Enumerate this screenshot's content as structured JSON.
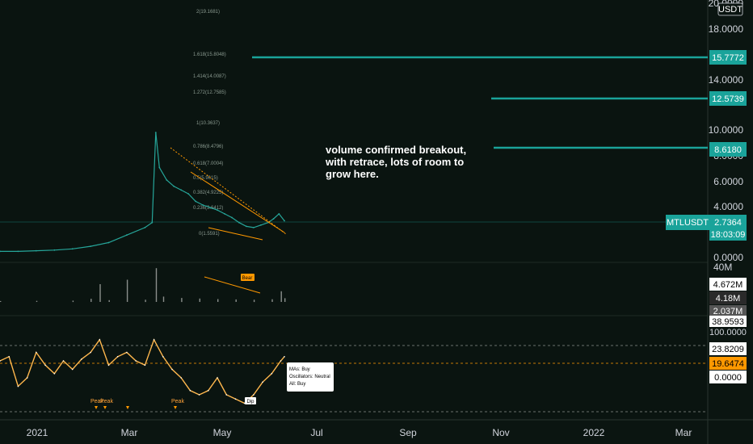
{
  "chart_data": {
    "type": "line",
    "symbol": "MTLUSDT",
    "currency": "USDT",
    "last_price": "2.7364",
    "countdown": "18:03:09",
    "price_axis": {
      "ticks": [
        "20.0000",
        "18.0000",
        "14.0000",
        "10.0000",
        "8.0000",
        "6.0000",
        "4.0000",
        "0.0000"
      ],
      "range": [
        0,
        20
      ]
    },
    "volume_axis": {
      "top": "40M"
    },
    "targets": [
      "15.7772",
      "12.5739",
      "8.6180"
    ],
    "fib_labels": [
      "2(19.1681)",
      "1.618(15.8048)",
      "1.414(14.0087)",
      "1.272(12.7585)",
      "1(10.3637)",
      "0.786(8.4796)",
      "0.618(7.0004)",
      "0.5(5.9615)",
      "0.382(4.9225)",
      "0.236(3.6412)",
      "0(1.5591)"
    ],
    "annotation": [
      "volume confirmed breakout,",
      "with retrace, lots of room to",
      "grow here."
    ],
    "volume_levels": [
      "4.672M",
      "4.18M",
      "2.037M"
    ],
    "volume_signal": "Bear",
    "osc_levels": [
      "38.9593",
      "100.0000",
      "23.8209",
      "19.6474",
      "0.0000"
    ],
    "signals": [
      "Peak",
      "Peak",
      "Peak",
      "Dip"
    ],
    "summary": [
      "MAs:       Buy",
      "Oscillators: Neutral",
      "All:  Buy"
    ],
    "time_axis": [
      "2021",
      "Mar",
      "May",
      "Jul",
      "Sep",
      "Nov",
      "2022",
      "Mar"
    ],
    "series": [
      {
        "name": "",
        "type": "line",
        "x_days": [
          0,
          10,
          20,
          30,
          40,
          50,
          60,
          70,
          80,
          84,
          86,
          88,
          92,
          96,
          100,
          104,
          108,
          112,
          116,
          120,
          124,
          128,
          132,
          136,
          140,
          144,
          148,
          151,
          154,
          157
        ],
        "values": [
          0.3,
          0.3,
          0.35,
          0.4,
          0.5,
          0.7,
          1.0,
          1.6,
          2.2,
          2.6,
          9.8,
          7.0,
          6.0,
          5.5,
          5.2,
          4.9,
          4.3,
          4.0,
          3.8,
          3.6,
          3.3,
          3.0,
          2.6,
          2.3,
          2.2,
          2.4,
          2.6,
          2.9,
          3.3,
          2.74
        ]
      }
    ],
    "volume": {
      "x_days": [
        0,
        20,
        40,
        50,
        55,
        60,
        70,
        80,
        86,
        90,
        100,
        110,
        120,
        130,
        140,
        150,
        155,
        157
      ],
      "values": [
        1.0,
        1.2,
        1.5,
        3.5,
        20,
        2.0,
        25,
        2.5,
        38,
        6.0,
        4.5,
        3.8,
        3.2,
        2.8,
        2.5,
        3.0,
        12,
        4.2
      ]
    },
    "oscillator": {
      "x_days": [
        0,
        5,
        10,
        15,
        20,
        25,
        30,
        35,
        40,
        45,
        50,
        55,
        60,
        65,
        70,
        75,
        80,
        85,
        90,
        95,
        100,
        105,
        110,
        115,
        120,
        125,
        130,
        135,
        140,
        145,
        150,
        155,
        157
      ],
      "values": [
        60,
        65,
        30,
        40,
        70,
        55,
        45,
        60,
        50,
        62,
        70,
        85,
        55,
        65,
        70,
        60,
        55,
        85,
        65,
        50,
        40,
        25,
        20,
        25,
        40,
        20,
        15,
        10,
        20,
        35,
        45,
        60,
        65
      ],
      "ylim": [
        0,
        100
      ]
    }
  }
}
